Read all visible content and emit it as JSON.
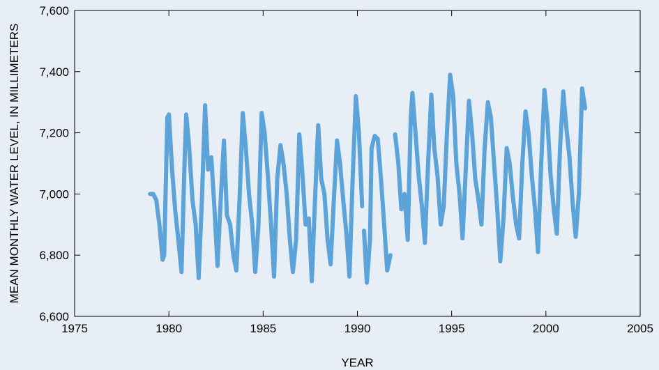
{
  "chart_data": {
    "type": "line",
    "xlabel": "YEAR",
    "ylabel": "MEAN MONTHLY WATER LEVEL, IN MILLIMETERS",
    "xlim": [
      1975,
      2005
    ],
    "ylim": [
      6600,
      7600
    ],
    "x_ticks": [
      1975,
      1980,
      1985,
      1990,
      1995,
      2000,
      2005
    ],
    "y_ticks": [
      6600,
      6800,
      7000,
      7200,
      7400,
      7600
    ],
    "x_tick_labels": [
      "1975",
      "1980",
      "1985",
      "1990",
      "1995",
      "2000",
      "2005"
    ],
    "y_tick_labels": [
      "6,600",
      "6,800",
      "7,000",
      "7,200",
      "7,400",
      "7,600"
    ],
    "grid": false,
    "line_color": "#5ba3d9",
    "series": [
      {
        "segments": [
          [
            [
              1979.0,
              7000
            ],
            [
              1979.17,
              7000
            ],
            [
              1979.33,
              6980
            ],
            [
              1979.5,
              6900
            ],
            [
              1979.67,
              6785
            ],
            [
              1979.75,
              6800
            ],
            [
              1979.92,
              7250
            ],
            [
              1980.0,
              7260
            ],
            [
              1980.17,
              7080
            ],
            [
              1980.33,
              6950
            ],
            [
              1980.5,
              6850
            ],
            [
              1980.67,
              6745
            ],
            [
              1980.83,
              7100
            ],
            [
              1980.92,
              7260
            ],
            [
              1981.08,
              7150
            ],
            [
              1981.25,
              6980
            ],
            [
              1981.42,
              6900
            ],
            [
              1981.58,
              6725
            ],
            [
              1981.75,
              6980
            ],
            [
              1981.92,
              7290
            ],
            [
              1982.08,
              7080
            ],
            [
              1982.25,
              7120
            ],
            [
              1982.42,
              6950
            ],
            [
              1982.58,
              6765
            ],
            [
              1982.75,
              6980
            ],
            [
              1982.92,
              7175
            ],
            [
              1983.08,
              6930
            ],
            [
              1983.25,
              6900
            ],
            [
              1983.42,
              6800
            ],
            [
              1983.58,
              6750
            ],
            [
              1983.75,
              6980
            ],
            [
              1983.92,
              7265
            ],
            [
              1984.08,
              7150
            ],
            [
              1984.25,
              7000
            ],
            [
              1984.42,
              6900
            ],
            [
              1984.58,
              6745
            ],
            [
              1984.75,
              6900
            ],
            [
              1984.92,
              7265
            ],
            [
              1985.08,
              7200
            ],
            [
              1985.25,
              7060
            ],
            [
              1985.42,
              6900
            ],
            [
              1985.58,
              6730
            ],
            [
              1985.75,
              7050
            ],
            [
              1985.92,
              7160
            ],
            [
              1986.08,
              7100
            ],
            [
              1986.25,
              7000
            ],
            [
              1986.42,
              6850
            ],
            [
              1986.58,
              6745
            ],
            [
              1986.75,
              6850
            ],
            [
              1986.92,
              7195
            ],
            [
              1987.08,
              7070
            ],
            [
              1987.25,
              6900
            ],
            [
              1987.42,
              6920
            ],
            [
              1987.58,
              6715
            ],
            [
              1987.75,
              6980
            ],
            [
              1987.92,
              7225
            ],
            [
              1988.08,
              7050
            ],
            [
              1988.25,
              7000
            ],
            [
              1988.42,
              6850
            ],
            [
              1988.58,
              6770
            ],
            [
              1988.75,
              6980
            ],
            [
              1988.92,
              7175
            ],
            [
              1989.08,
              7100
            ],
            [
              1989.25,
              6980
            ],
            [
              1989.42,
              6870
            ],
            [
              1989.58,
              6730
            ],
            [
              1989.75,
              7050
            ],
            [
              1989.92,
              7320
            ],
            [
              1990.08,
              7200
            ],
            [
              1990.25,
              6960
            ]
          ],
          [
            [
              1990.35,
              6880
            ],
            [
              1990.5,
              6710
            ],
            [
              1990.67,
              6850
            ],
            [
              1990.75,
              7150
            ],
            [
              1990.92,
              7190
            ],
            [
              1991.08,
              7180
            ],
            [
              1991.25,
              7050
            ],
            [
              1991.42,
              6900
            ],
            [
              1991.58,
              6750
            ],
            [
              1991.75,
              6800
            ]
          ],
          [
            [
              1992.0,
              7195
            ],
            [
              1992.17,
              7100
            ],
            [
              1992.33,
              6950
            ],
            [
              1992.5,
              7000
            ],
            [
              1992.67,
              6850
            ],
            [
              1992.83,
              7250
            ],
            [
              1992.92,
              7330
            ],
            [
              1993.08,
              7200
            ],
            [
              1993.25,
              7060
            ],
            [
              1993.42,
              6960
            ],
            [
              1993.58,
              6840
            ],
            [
              1993.75,
              7100
            ],
            [
              1993.92,
              7325
            ],
            [
              1994.08,
              7150
            ],
            [
              1994.25,
              7060
            ],
            [
              1994.42,
              6900
            ],
            [
              1994.58,
              6960
            ],
            [
              1994.75,
              7200
            ],
            [
              1994.92,
              7390
            ],
            [
              1995.08,
              7320
            ],
            [
              1995.25,
              7100
            ],
            [
              1995.42,
              7000
            ],
            [
              1995.58,
              6855
            ],
            [
              1995.75,
              7080
            ],
            [
              1995.92,
              7305
            ],
            [
              1996.08,
              7200
            ],
            [
              1996.25,
              7050
            ],
            [
              1996.42,
              6980
            ],
            [
              1996.58,
              6900
            ],
            [
              1996.75,
              7150
            ],
            [
              1996.92,
              7300
            ],
            [
              1997.08,
              7250
            ],
            [
              1997.25,
              7100
            ],
            [
              1997.42,
              6950
            ],
            [
              1997.58,
              6780
            ],
            [
              1997.75,
              6920
            ],
            [
              1997.92,
              7150
            ],
            [
              1998.08,
              7100
            ],
            [
              1998.25,
              6990
            ],
            [
              1998.42,
              6900
            ],
            [
              1998.58,
              6855
            ],
            [
              1998.75,
              7100
            ],
            [
              1998.92,
              7270
            ],
            [
              1999.08,
              7200
            ],
            [
              1999.25,
              7060
            ],
            [
              1999.42,
              6950
            ],
            [
              1999.58,
              6810
            ],
            [
              1999.75,
              7100
            ],
            [
              1999.92,
              7340
            ],
            [
              2000.08,
              7240
            ],
            [
              2000.25,
              7060
            ],
            [
              2000.42,
              6950
            ],
            [
              2000.58,
              6870
            ],
            [
              2000.75,
              7150
            ],
            [
              2000.92,
              7335
            ],
            [
              2001.08,
              7220
            ],
            [
              2001.25,
              7120
            ],
            [
              2001.42,
              6970
            ],
            [
              2001.58,
              6860
            ],
            [
              2001.75,
              7000
            ],
            [
              2001.92,
              7345
            ],
            [
              2002.08,
              7280
            ]
          ]
        ]
      }
    ]
  }
}
